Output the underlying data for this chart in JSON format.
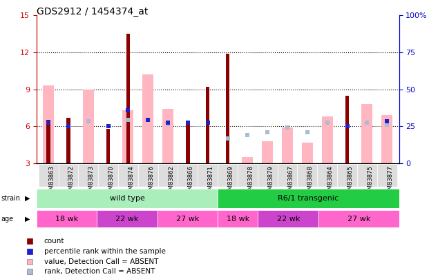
{
  "title": "GDS2912 / 1454374_at",
  "samples": [
    "GSM83863",
    "GSM83872",
    "GSM83873",
    "GSM83870",
    "GSM83874",
    "GSM83876",
    "GSM83862",
    "GSM83866",
    "GSM83871",
    "GSM83869",
    "GSM83878",
    "GSM83879",
    "GSM83867",
    "GSM83868",
    "GSM83864",
    "GSM83865",
    "GSM83875",
    "GSM83877"
  ],
  "ylim_left": [
    3,
    15
  ],
  "ylim_right": [
    0,
    100
  ],
  "yticks_left": [
    3,
    6,
    9,
    12,
    15
  ],
  "yticks_right": [
    0,
    25,
    50,
    75,
    100
  ],
  "left_tick_labels": [
    "3",
    "6",
    "9",
    "12",
    "15"
  ],
  "right_tick_labels": [
    "0",
    "25",
    "50",
    "75",
    "100%"
  ],
  "count_color": "#8B0000",
  "rank_color": "#1F1FCC",
  "value_absent_color": "#FFB6C1",
  "rank_absent_color": "#AABBD4",
  "count_values": [
    6.5,
    6.7,
    null,
    5.8,
    13.5,
    null,
    null,
    6.3,
    9.2,
    11.9,
    null,
    null,
    null,
    null,
    null,
    8.5,
    null,
    null
  ],
  "rank_values": [
    6.3,
    6.0,
    null,
    6.0,
    7.3,
    6.5,
    6.3,
    6.3,
    6.3,
    null,
    null,
    null,
    null,
    null,
    null,
    6.0,
    null,
    6.4
  ],
  "value_absent": [
    9.3,
    null,
    9.0,
    null,
    7.3,
    10.2,
    7.4,
    null,
    null,
    null,
    3.5,
    4.8,
    5.9,
    4.7,
    6.8,
    null,
    7.8,
    6.9
  ],
  "rank_absent": [
    null,
    null,
    6.4,
    null,
    6.5,
    null,
    6.2,
    null,
    null,
    5.0,
    5.3,
    5.5,
    5.9,
    5.5,
    6.3,
    null,
    6.3,
    6.1
  ],
  "strain_groups": [
    {
      "label": "wild type",
      "start": 0,
      "end": 9,
      "color": "#AAEEBB"
    },
    {
      "label": "R6/1 transgenic",
      "start": 9,
      "end": 18,
      "color": "#22CC44"
    }
  ],
  "age_groups": [
    {
      "label": "18 wk",
      "start": 0,
      "end": 3,
      "color": "#FF66CC"
    },
    {
      "label": "22 wk",
      "start": 3,
      "end": 6,
      "color": "#CC44CC"
    },
    {
      "label": "27 wk",
      "start": 6,
      "end": 9,
      "color": "#FF66CC"
    },
    {
      "label": "18 wk",
      "start": 9,
      "end": 11,
      "color": "#FF66CC"
    },
    {
      "label": "22 wk",
      "start": 11,
      "end": 14,
      "color": "#CC44CC"
    },
    {
      "label": "27 wk",
      "start": 14,
      "end": 18,
      "color": "#FF66CC"
    }
  ],
  "legend_items": [
    {
      "label": "count",
      "color": "#8B0000"
    },
    {
      "label": "percentile rank within the sample",
      "color": "#1F1FCC"
    },
    {
      "label": "value, Detection Call = ABSENT",
      "color": "#FFB6C1"
    },
    {
      "label": "rank, Detection Call = ABSENT",
      "color": "#AABBD4"
    }
  ],
  "left_axis_color": "#CC0000",
  "right_axis_color": "#0000CC",
  "cell_bg": "#DDDDDD",
  "plot_bg": "#FFFFFF"
}
